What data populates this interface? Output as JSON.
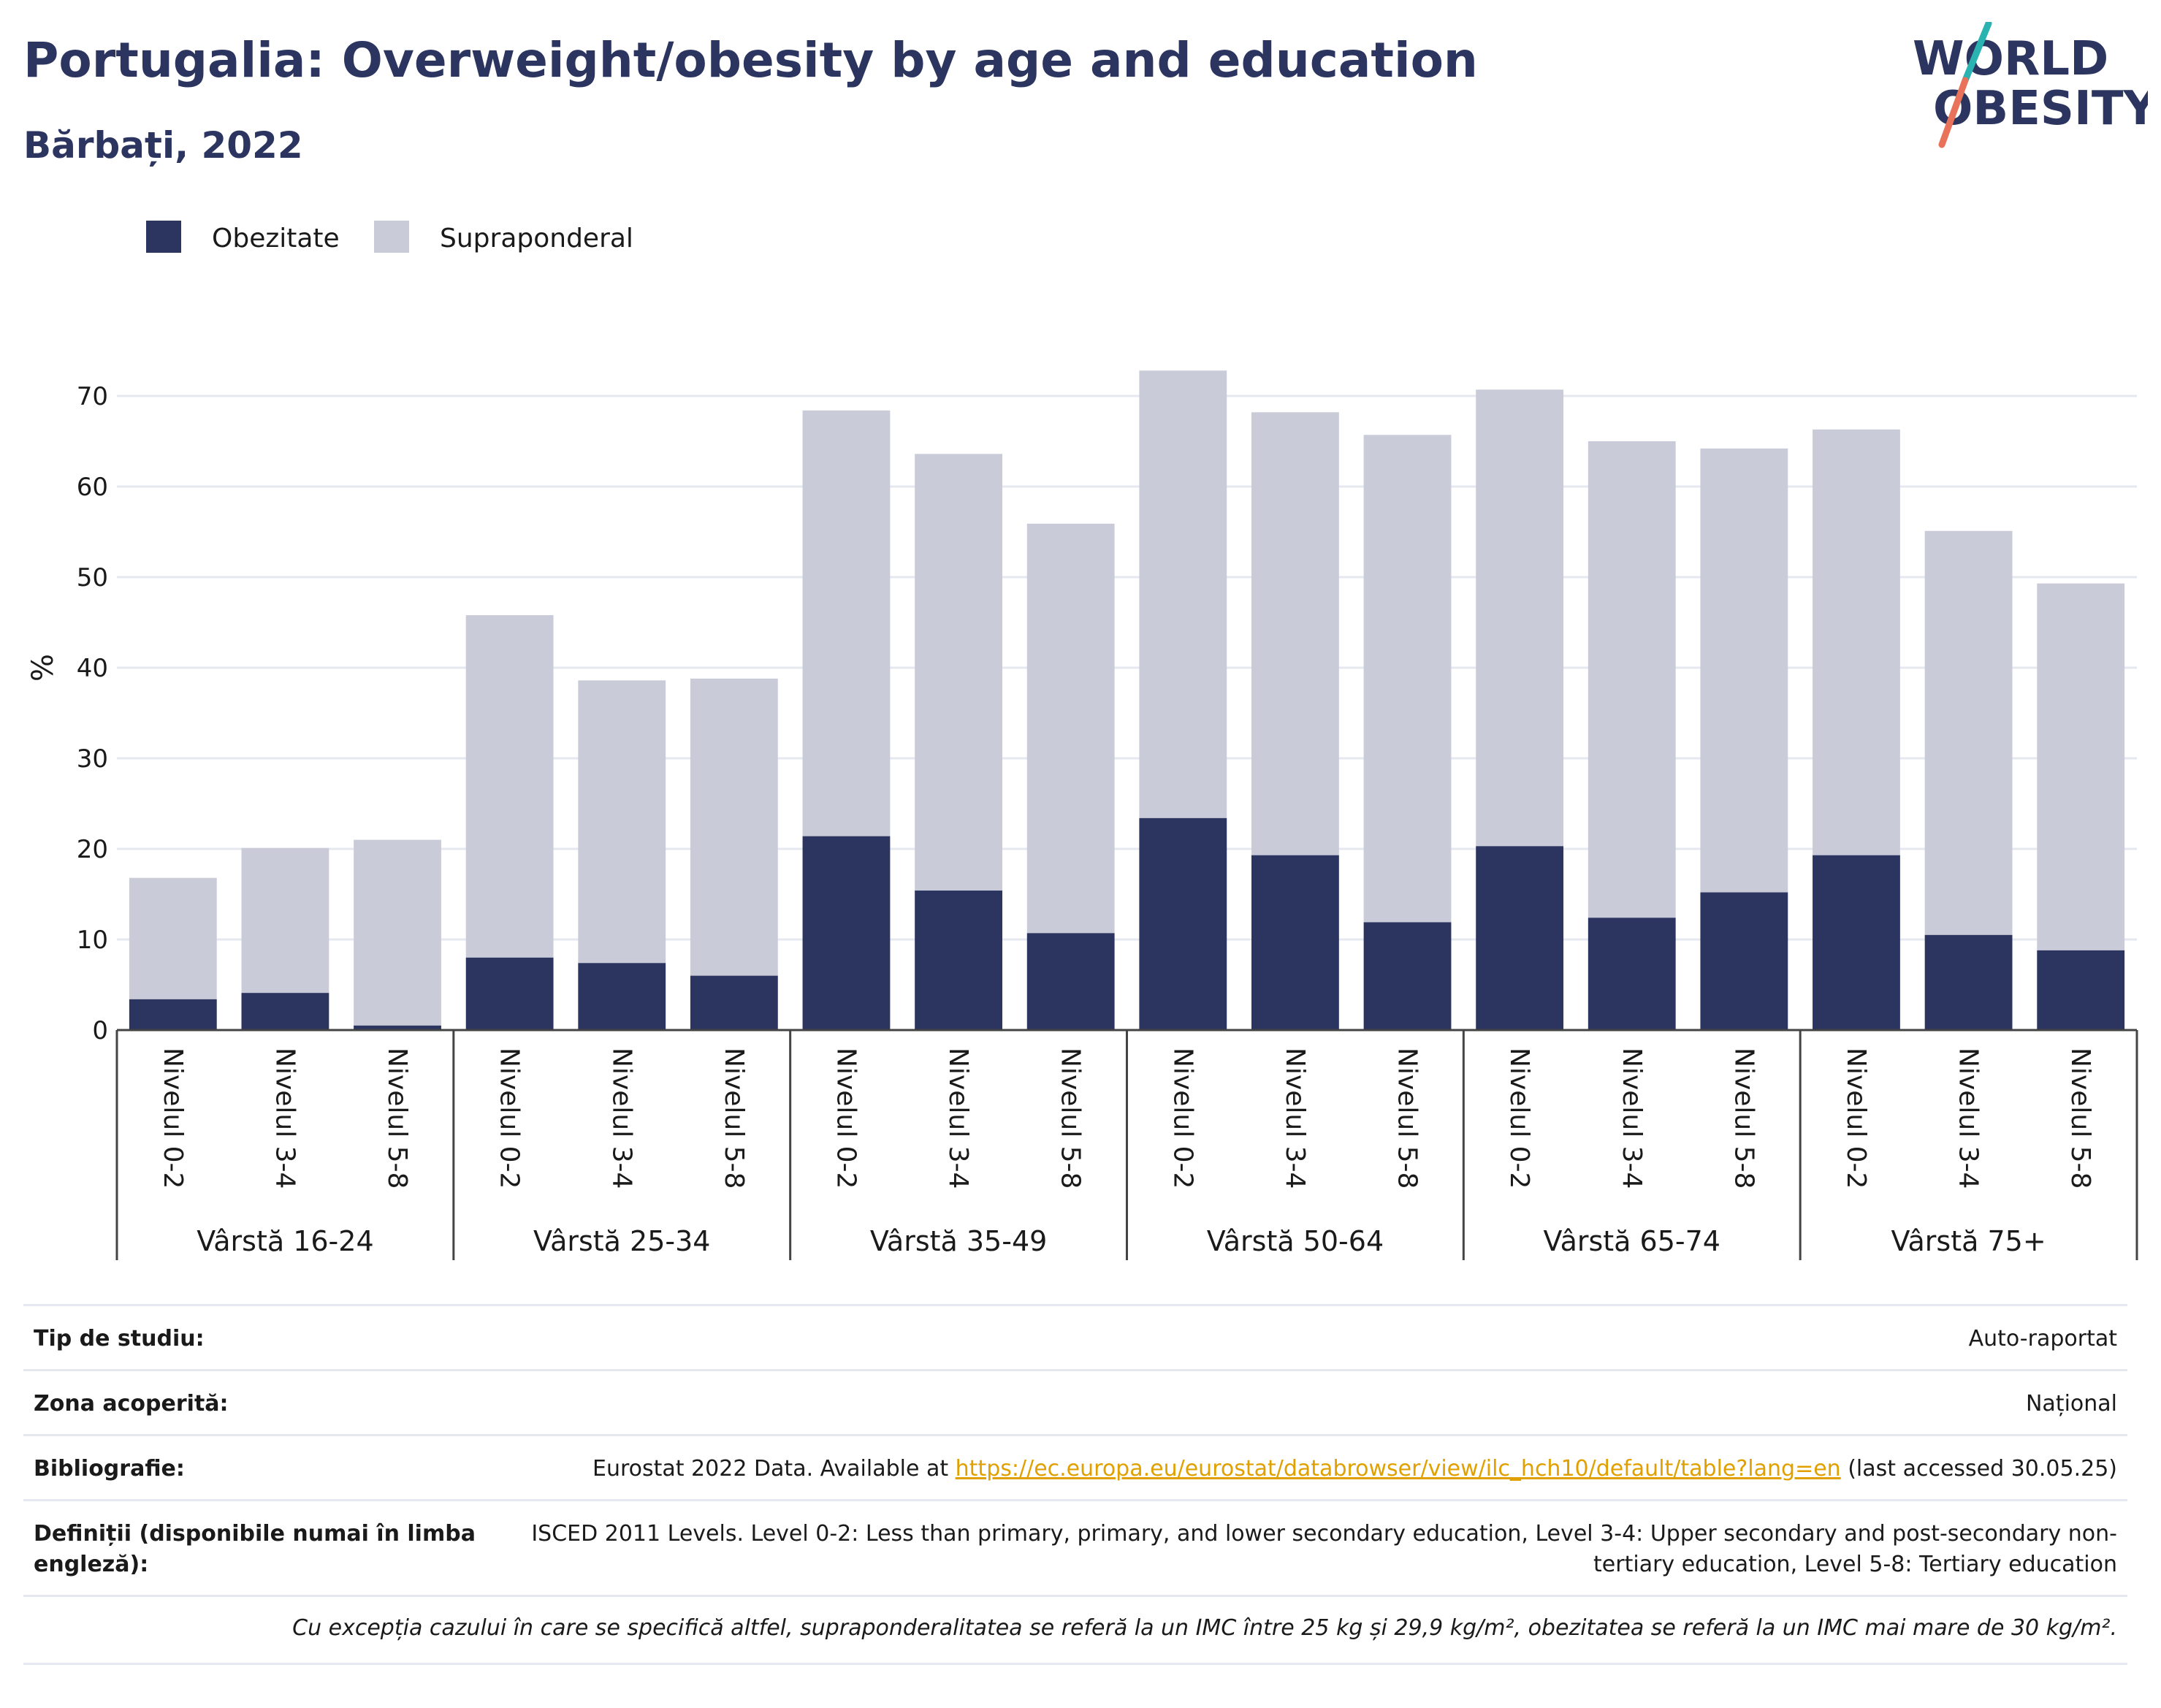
{
  "header": {
    "title": "Portugalia: Overweight/obesity by age and education",
    "subtitle": "Bărbați, 2022"
  },
  "logo": {
    "line1": "WORLD",
    "line2": "OBESITY",
    "accent_colors": [
      "#2bb3b1",
      "#e8735a"
    ]
  },
  "colors": {
    "obesity": "#2b3560",
    "overweight": "#c9cbd8",
    "grid": "#e6e8f0",
    "axis": "#444444"
  },
  "chart_data": {
    "type": "bar",
    "stacked": true,
    "ylabel": "%",
    "ylim": [
      0,
      75
    ],
    "yticks": [
      0,
      10,
      20,
      30,
      40,
      50,
      60,
      70
    ],
    "grid": true,
    "legend_position": "top-left",
    "legend": [
      "Obezitate",
      "Supraponderal"
    ],
    "groups": [
      {
        "label": "Vârstă 16-24",
        "categories": [
          "Nivelul 0-2",
          "Nivelul 3-4",
          "Nivelul 5-8"
        ]
      },
      {
        "label": "Vârstă 25-34",
        "categories": [
          "Nivelul 0-2",
          "Nivelul 3-4",
          "Nivelul 5-8"
        ]
      },
      {
        "label": "Vârstă 35-49",
        "categories": [
          "Nivelul 0-2",
          "Nivelul 3-4",
          "Nivelul 5-8"
        ]
      },
      {
        "label": "Vârstă 50-64",
        "categories": [
          "Nivelul 0-2",
          "Nivelul 3-4",
          "Nivelul 5-8"
        ]
      },
      {
        "label": "Vârstă 65-74",
        "categories": [
          "Nivelul 0-2",
          "Nivelul 3-4",
          "Nivelul 5-8"
        ]
      },
      {
        "label": "Vârstă 75+",
        "categories": [
          "Nivelul 0-2",
          "Nivelul 3-4",
          "Nivelul 5-8"
        ]
      }
    ],
    "series": [
      {
        "name": "Obezitate",
        "values": [
          3.4,
          4.1,
          0.5,
          8.0,
          7.4,
          6.0,
          21.4,
          15.4,
          10.7,
          23.4,
          19.3,
          11.9,
          20.3,
          12.4,
          15.2,
          19.3,
          10.5,
          8.8
        ]
      },
      {
        "name": "Supraponderal",
        "values": [
          13.4,
          16.0,
          20.5,
          37.8,
          31.2,
          32.8,
          47.0,
          48.2,
          45.2,
          49.4,
          48.9,
          53.8,
          50.4,
          52.6,
          49.0,
          47.0,
          44.6,
          40.5
        ]
      }
    ]
  },
  "info": {
    "rows": [
      {
        "label": "Tip de studiu:",
        "value": "Auto-raportat"
      },
      {
        "label": "Zona acoperită:",
        "value": "Național"
      },
      {
        "label": "Bibliografie:",
        "value_prefix": "Eurostat 2022 Data. Available at ",
        "link": "https://ec.europa.eu/eurostat/databrowser/view/ilc_hch10/default/table?lang=en",
        "value_suffix": " (last accessed 30.05.25)"
      },
      {
        "label": "Definiții (disponibile numai în limba engleză):",
        "value": "ISCED 2011 Levels. Level 0-2: Less than primary, primary, and lower secondary education, Level 3-4: Upper secondary and post-secondary non-tertiary education, Level 5-8: Tertiary education"
      }
    ],
    "note": "Cu excepția cazului în care se specifică altfel, supraponderalitatea se referă la un IMC între 25 kg și 29,9 kg/m², obezitatea se referă la un IMC mai mare de 30 kg/m²."
  }
}
